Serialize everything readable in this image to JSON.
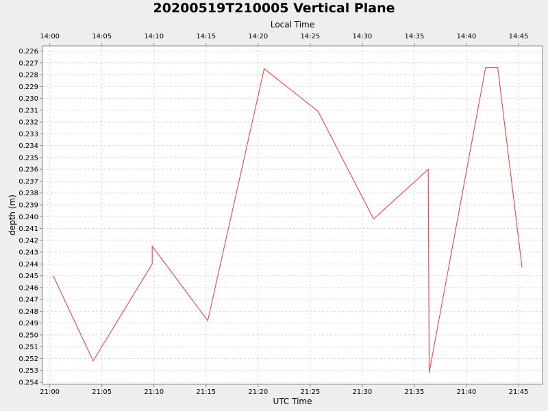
{
  "chart_data": {
    "type": "line",
    "title": "20200519T210005 Vertical Plane",
    "xlabel": "UTC Time",
    "x2label": "Local Time",
    "ylabel": "depth (m)",
    "y_inverted": true,
    "ylim": [
      0.226,
      0.254
    ],
    "xlim_minutes": [
      -0.7,
      47.3
    ],
    "x_ticks_utc": [
      "21:00",
      "21:05",
      "21:10",
      "21:15",
      "21:20",
      "21:25",
      "21:30",
      "21:35",
      "21:40",
      "21:45"
    ],
    "x_ticks_local": [
      "14:00",
      "14:05",
      "14:10",
      "14:15",
      "14:20",
      "14:25",
      "14:30",
      "14:35",
      "14:40",
      "14:45"
    ],
    "y_ticks": [
      "0.226",
      "0.227",
      "0.228",
      "0.229",
      "0.230",
      "0.231",
      "0.232",
      "0.233",
      "0.234",
      "0.235",
      "0.236",
      "0.237",
      "0.238",
      "0.239",
      "0.240",
      "0.241",
      "0.242",
      "0.243",
      "0.244",
      "0.245",
      "0.246",
      "0.247",
      "0.248",
      "0.249",
      "0.250",
      "0.251",
      "0.252",
      "0.253",
      "0.254"
    ],
    "grid": true,
    "series": [
      {
        "color": "#ee4444",
        "x": [
          "21:00:20",
          "21:04:10",
          "21:09:50",
          "21:09:50",
          "21:15:10",
          "21:20:35",
          "21:25:45",
          "21:31:05",
          "21:36:20",
          "21:36:25",
          "21:41:50",
          "21:43:00",
          "21:45:20"
        ],
        "y": [
          0.245,
          0.2522,
          0.244,
          0.2425,
          0.2488,
          0.2275,
          0.2311,
          0.2402,
          0.236,
          0.2532,
          0.2274,
          0.2274,
          0.2443
        ]
      }
    ]
  }
}
